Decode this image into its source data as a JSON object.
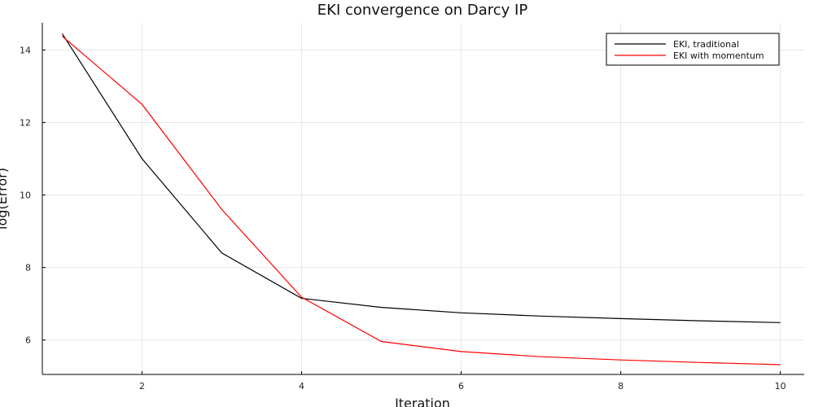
{
  "chart_data": {
    "type": "line",
    "title": "EKI convergence on Darcy IP",
    "xlabel": "Iteration",
    "ylabel": "log(Error)",
    "xlim": [
      0.75,
      10.3
    ],
    "ylim": [
      5.05,
      14.75
    ],
    "xticks": [
      2,
      4,
      6,
      8,
      10
    ],
    "yticks": [
      6,
      8,
      10,
      12,
      14
    ],
    "grid": true,
    "legend_position": "top-right",
    "series": [
      {
        "name": "EKI, traditional",
        "color": "#000000",
        "x": [
          1,
          2,
          3,
          4,
          5,
          6,
          7,
          8,
          9,
          10
        ],
        "y": [
          14.45,
          11.0,
          8.4,
          7.15,
          6.9,
          6.75,
          6.66,
          6.59,
          6.53,
          6.48
        ]
      },
      {
        "name": "EKI with momentum",
        "color": "#ff0000",
        "x": [
          1,
          2,
          3,
          4,
          5,
          6,
          7,
          8,
          9,
          10
        ],
        "y": [
          14.38,
          12.5,
          9.6,
          7.18,
          5.96,
          5.68,
          5.54,
          5.45,
          5.38,
          5.32
        ]
      }
    ]
  }
}
